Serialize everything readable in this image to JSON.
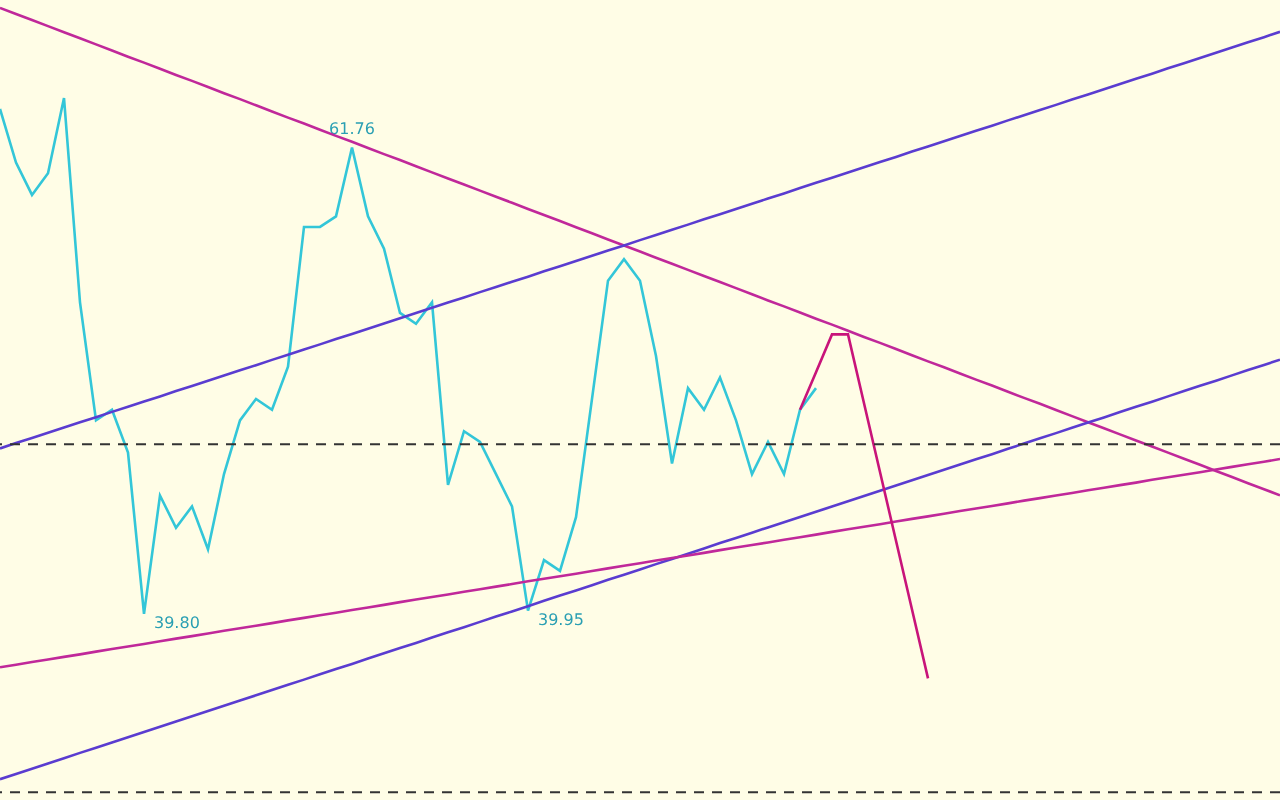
{
  "chart_data": {
    "type": "line",
    "categories": [
      null,
      null,
      null,
      null,
      null,
      null,
      null,
      null,
      null,
      null,
      null,
      null,
      null,
      null,
      null,
      null,
      null,
      null,
      null,
      null,
      null,
      null,
      null,
      null,
      null,
      null,
      null,
      null,
      null,
      null,
      null,
      null,
      null,
      null,
      null,
      null,
      null,
      null,
      null,
      null,
      null,
      null,
      null,
      null,
      null,
      null,
      null,
      null,
      null,
      null,
      null,
      null,
      null,
      null,
      null,
      null,
      null,
      null,
      null,
      null,
      null,
      null,
      null,
      null,
      null,
      null,
      null,
      null,
      null,
      null,
      null,
      null,
      null,
      null,
      null,
      null,
      null,
      null,
      null,
      null,
      null
    ],
    "series": [
      {
        "color": "#33c6d8",
        "values": [
          63.58,
          61.05,
          59.53,
          60.55,
          64.09,
          54.47,
          48.91,
          49.41,
          47.39,
          39.8,
          45.37,
          43.85,
          44.86,
          42.84,
          46.38,
          48.91,
          49.92,
          49.41,
          51.44,
          58.02,
          58.02,
          58.52,
          61.76,
          58.52,
          57.0,
          53.97,
          53.46,
          54.47,
          45.87,
          48.4,
          47.9,
          46.38,
          44.86,
          39.95,
          42.33,
          41.82,
          44.35,
          49.92,
          55.49,
          56.5,
          55.49,
          51.94,
          46.88,
          50.43,
          49.41,
          50.93,
          48.91,
          46.38,
          47.9,
          46.38,
          49.41,
          50.43,
          null,
          null,
          null,
          null,
          null,
          null,
          null,
          null,
          null,
          null,
          null,
          null,
          null,
          null,
          null,
          null,
          null,
          null,
          null,
          null,
          null,
          null,
          null,
          null,
          null,
          null,
          null,
          null,
          null
        ],
        "value_labels": [
          null,
          null,
          null,
          null,
          null,
          null,
          null,
          null,
          null,
          "39.80",
          null,
          null,
          null,
          null,
          null,
          null,
          null,
          null,
          null,
          null,
          null,
          null,
          "61.76",
          null,
          null,
          null,
          null,
          null,
          null,
          null,
          null,
          null,
          null,
          "39.95",
          null,
          null,
          null,
          null,
          null,
          null,
          null,
          null,
          null,
          null,
          null,
          null,
          null,
          null,
          null,
          null,
          null,
          null,
          null,
          null,
          null,
          null,
          null,
          null,
          null,
          null,
          null,
          null,
          null,
          null,
          null,
          null,
          null,
          null,
          null,
          null,
          null,
          null,
          null,
          null,
          null,
          null,
          null,
          null,
          null,
          null,
          null
        ]
      },
      {
        "color": "#c0289a",
        "values": [
          68.34,
          68.05,
          67.77,
          67.48,
          67.19,
          66.91,
          66.62,
          66.33,
          66.04,
          65.76,
          65.47,
          65.18,
          64.9,
          64.61,
          64.32,
          64.04,
          63.75,
          63.46,
          63.17,
          62.89,
          62.6,
          62.31,
          62.03,
          61.74,
          61.45,
          61.17,
          60.88,
          60.59,
          60.3,
          60.02,
          59.73,
          59.44,
          59.16,
          58.87,
          58.58,
          58.3,
          58.01,
          57.72,
          57.43,
          57.15,
          56.86,
          56.57,
          56.29,
          56.0,
          55.71,
          55.43,
          55.14,
          54.85,
          54.56,
          54.28,
          53.99,
          53.7,
          53.42,
          53.13,
          52.84,
          52.56,
          52.27,
          51.98,
          51.69,
          51.41,
          51.12,
          50.83,
          50.55,
          50.26,
          49.97,
          49.69,
          49.4,
          49.11,
          48.82,
          48.54,
          48.25,
          47.96,
          47.68,
          47.39,
          47.1,
          46.82,
          46.53,
          46.24,
          45.95,
          45.67,
          45.38
        ]
      },
      {
        "color": "#5a3cd0",
        "values": [
          47.59,
          47.84,
          48.08,
          48.33,
          48.57,
          48.82,
          49.06,
          49.31,
          49.55,
          49.8,
          50.04,
          50.29,
          50.53,
          50.78,
          51.02,
          51.27,
          51.51,
          51.76,
          52.0,
          52.25,
          52.49,
          52.74,
          52.98,
          53.23,
          53.47,
          53.72,
          53.97,
          54.21,
          54.46,
          54.7,
          54.95,
          55.19,
          55.44,
          55.68,
          55.93,
          56.17,
          56.42,
          56.66,
          56.91,
          57.15,
          57.4,
          57.64,
          57.89,
          58.13,
          58.38,
          58.62,
          58.87,
          59.11,
          59.36,
          59.6,
          59.85,
          60.1,
          60.34,
          60.59,
          60.83,
          61.08,
          61.32,
          61.57,
          61.81,
          62.06,
          62.3,
          62.55,
          62.79,
          63.04,
          63.28,
          63.53,
          63.77,
          64.02,
          64.26,
          64.51,
          64.75,
          65.0,
          65.24,
          65.49,
          65.73,
          65.98,
          66.23,
          66.47,
          66.72,
          66.96,
          67.21
        ]
      },
      {
        "color": "#5a3cd0",
        "values": [
          32.01,
          32.26,
          32.5,
          32.75,
          33.0,
          33.25,
          33.49,
          33.74,
          33.99,
          34.23,
          34.48,
          34.73,
          34.97,
          35.22,
          35.47,
          35.72,
          35.96,
          36.21,
          36.46,
          36.7,
          36.95,
          37.2,
          37.44,
          37.69,
          37.94,
          38.19,
          38.43,
          38.68,
          38.93,
          39.17,
          39.42,
          39.67,
          39.91,
          40.16,
          40.41,
          40.66,
          40.9,
          41.15,
          41.4,
          41.64,
          41.89,
          42.14,
          42.38,
          42.63,
          42.88,
          43.13,
          43.37,
          43.62,
          43.87,
          44.11,
          44.36,
          44.61,
          44.85,
          45.1,
          45.35,
          45.6,
          45.84,
          46.09,
          46.34,
          46.58,
          46.83,
          47.08,
          47.32,
          47.57,
          47.82,
          48.07,
          48.31,
          48.56,
          48.81,
          49.05,
          49.3,
          49.55,
          49.79,
          50.04,
          50.29,
          50.54,
          50.78,
          51.03,
          51.28,
          51.52,
          51.77
        ]
      },
      {
        "color": "#c0289a",
        "values": [
          37.28,
          37.4,
          37.53,
          37.65,
          37.77,
          37.89,
          38.02,
          38.14,
          38.26,
          38.38,
          38.51,
          38.63,
          38.75,
          38.87,
          39.0,
          39.12,
          39.24,
          39.36,
          39.49,
          39.61,
          39.73,
          39.85,
          39.98,
          40.1,
          40.22,
          40.35,
          40.47,
          40.59,
          40.71,
          40.84,
          40.96,
          41.08,
          41.2,
          41.33,
          41.45,
          41.57,
          41.69,
          41.82,
          41.94,
          42.06,
          42.18,
          42.31,
          42.43,
          42.55,
          42.67,
          42.8,
          42.92,
          43.04,
          43.16,
          43.29,
          43.41,
          43.53,
          43.66,
          43.78,
          43.9,
          44.02,
          44.15,
          44.27,
          44.39,
          44.51,
          44.64,
          44.76,
          44.88,
          45.0,
          45.13,
          45.25,
          45.37,
          45.49,
          45.62,
          45.74,
          45.86,
          45.98,
          46.11,
          46.23,
          46.35,
          46.47,
          46.6,
          46.72,
          46.84,
          46.96,
          47.09
        ]
      },
      {
        "color": "#c8147a",
        "values": [
          null,
          null,
          null,
          null,
          null,
          null,
          null,
          null,
          null,
          null,
          null,
          null,
          null,
          null,
          null,
          null,
          null,
          null,
          null,
          null,
          null,
          null,
          null,
          null,
          null,
          null,
          null,
          null,
          null,
          null,
          null,
          null,
          null,
          null,
          null,
          null,
          null,
          null,
          null,
          null,
          null,
          null,
          null,
          null,
          null,
          null,
          null,
          null,
          null,
          null,
          49.41,
          51.18,
          52.96,
          52.96,
          49.72,
          46.48,
          43.24,
          40.0,
          36.76,
          null,
          null,
          null,
          null,
          null,
          null,
          null,
          null,
          null,
          null,
          null,
          null,
          null,
          null,
          null,
          null,
          null,
          null,
          null,
          null,
          null,
          null
        ]
      }
    ],
    "ref_lines": [
      {
        "axis": "y",
        "value": 47.79,
        "color": "#333333",
        "line_style": "dashed"
      },
      {
        "axis": "y",
        "value": 31.4,
        "color": "#333333",
        "line_style": "dashed"
      }
    ]
  }
}
